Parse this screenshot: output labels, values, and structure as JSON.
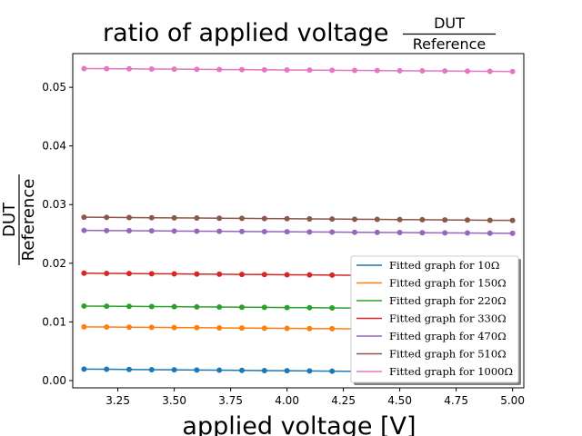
{
  "chart_data": {
    "type": "line",
    "title": {
      "main": "ratio of applied voltage",
      "fraction_numerator": "DUT",
      "fraction_denominator": "Reference"
    },
    "xlabel": "applied voltage [V]",
    "ylabel": {
      "fraction_numerator": "DUT",
      "fraction_denominator": "Reference"
    },
    "xlim": [
      3.05,
      5.05
    ],
    "ylim": [
      -0.00125,
      0.05575
    ],
    "xticks": [
      "3.25",
      "3.50",
      "3.75",
      "4.00",
      "4.25",
      "4.50",
      "4.75",
      "5.00"
    ],
    "yticks": [
      "0.00",
      "0.01",
      "0.02",
      "0.03",
      "0.04",
      "0.05"
    ],
    "x": [
      3.1,
      3.2,
      3.3,
      3.4,
      3.5,
      3.6,
      3.7,
      3.8,
      3.9,
      4.0,
      4.1,
      4.2,
      4.3,
      4.4,
      4.5,
      4.6,
      4.7,
      4.8,
      4.9,
      5.0
    ],
    "legend_position": "lower right",
    "grid": false,
    "series": [
      {
        "name": "Fitted graph for 10Ω",
        "color": "#1f77b4",
        "start": 0.00195,
        "end": 0.00135
      },
      {
        "name": "Fitted graph for 150Ω",
        "color": "#ff7f0e",
        "start": 0.00915,
        "end": 0.0086
      },
      {
        "name": "Fitted graph for 220Ω",
        "color": "#2ca02c",
        "start": 0.0127,
        "end": 0.01215
      },
      {
        "name": "Fitted graph for 330Ω",
        "color": "#d62728",
        "start": 0.0183,
        "end": 0.01775
      },
      {
        "name": "Fitted graph for 470Ω",
        "color": "#9467bd",
        "start": 0.0256,
        "end": 0.0251
      },
      {
        "name": "Fitted graph for 510Ω",
        "color": "#8c564b",
        "start": 0.02785,
        "end": 0.0273
      },
      {
        "name": "Fitted graph for 1000Ω",
        "color": "#e377c2",
        "start": 0.0532,
        "end": 0.0527
      }
    ]
  }
}
